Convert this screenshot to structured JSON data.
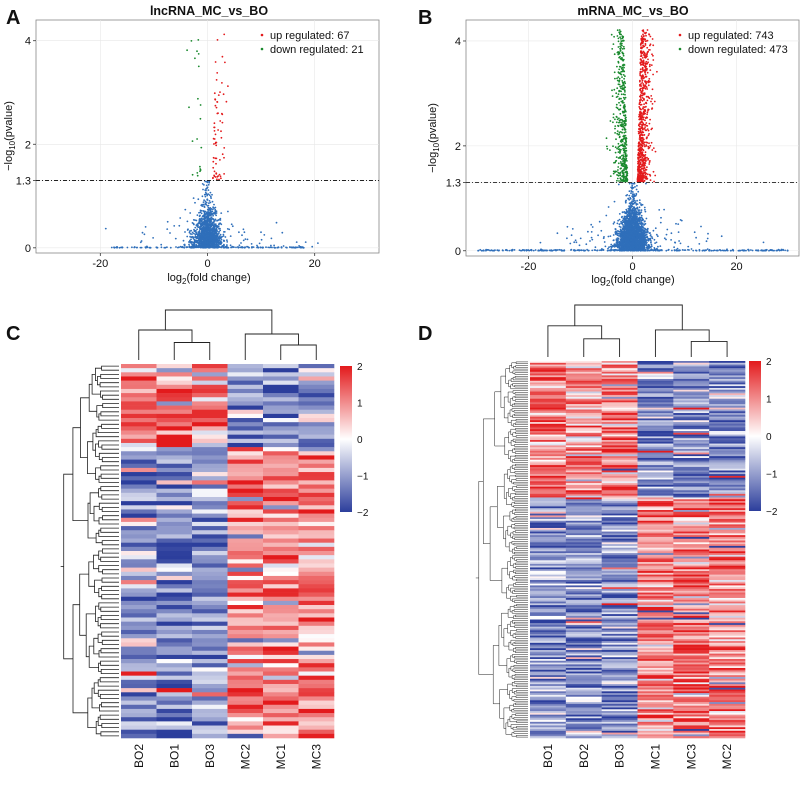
{
  "panels": {
    "A": {
      "letter": "A"
    },
    "B": {
      "letter": "B"
    },
    "C": {
      "letter": "C"
    },
    "D": {
      "letter": "D"
    }
  },
  "colors": {
    "up": "#e31a1c",
    "down": "#1a8a2e",
    "ns": "#2f6fba",
    "heat_high": "#e31a1c",
    "heat_mid": "#ffffff",
    "heat_low": "#2c3e9c",
    "grid": "#e8e8e8"
  },
  "chart_data": [
    {
      "id": "A",
      "type": "scatter",
      "title": "lncRNA_MC_vs_BO",
      "xlabel": "log2(fold change)",
      "ylabel": "-log10(pvalue)",
      "xlim": [
        -32,
        32
      ],
      "ylim": [
        -0.1,
        4.4
      ],
      "xticks": [
        -20,
        0,
        20
      ],
      "yticks": [
        0,
        1.3,
        2,
        4
      ],
      "ytick_labels": [
        "0",
        "1.3",
        "2",
        "4"
      ],
      "threshold": 1.3,
      "legend": [
        {
          "label": "up regulated: 67",
          "class": "up"
        },
        {
          "label": "down regulated: 21",
          "class": "down"
        }
      ],
      "sim": {
        "seed": 7,
        "n_ns": 1400,
        "n_up": 67,
        "n_down": 21,
        "n_base": 160,
        "base_span": 18
      }
    },
    {
      "id": "B",
      "type": "scatter",
      "title": "mRNA_MC_vs_BO",
      "xlabel": "log2(fold change)",
      "ylabel": "-log10(pvalue)",
      "xlim": [
        -32,
        32
      ],
      "ylim": [
        -0.1,
        4.4
      ],
      "xticks": [
        -20,
        0,
        20
      ],
      "yticks": [
        0,
        1.3,
        2,
        4
      ],
      "ytick_labels": [
        "0",
        "1.3",
        "2",
        "4"
      ],
      "threshold": 1.3,
      "legend": [
        {
          "label": "up regulated: 743",
          "class": "up"
        },
        {
          "label": "down regulated: 473",
          "class": "down"
        }
      ],
      "sim": {
        "seed": 13,
        "n_ns": 2600,
        "n_up": 743,
        "n_down": 473,
        "n_base": 300,
        "base_span": 30
      }
    },
    {
      "id": "C",
      "type": "heatmap",
      "columns": [
        "BO2",
        "BO1",
        "BO3",
        "MC2",
        "MC1",
        "MC3"
      ],
      "n_rows": 90,
      "color_scale": {
        "min": -2,
        "max": 2,
        "ticks": [
          "2",
          "1",
          "0",
          "−1",
          "−2"
        ]
      },
      "sim": {
        "seed": 21,
        "bo_high_fraction": 0.22
      }
    },
    {
      "id": "D",
      "type": "heatmap",
      "columns": [
        "BO1",
        "BO2",
        "BO3",
        "MC1",
        "MC3",
        "MC2"
      ],
      "n_rows": 210,
      "color_scale": {
        "min": -2,
        "max": 2,
        "ticks": [
          "2",
          "1",
          "0",
          "−1",
          "−2"
        ]
      },
      "sim": {
        "seed": 33,
        "bo_high_fraction": 0.36
      }
    }
  ]
}
